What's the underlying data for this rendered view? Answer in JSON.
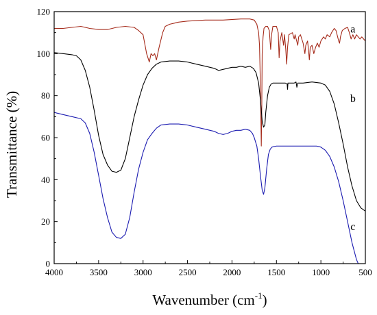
{
  "chart_data": {
    "type": "line",
    "xlabel": "Wavenumber (cm",
    "xlabel_superscript": "-1",
    "xlabel_close": ")",
    "ylabel": "Transmittance (%)",
    "xlim": [
      4000,
      500
    ],
    "ylim": [
      0,
      120
    ],
    "x_ticks": [
      4000,
      3500,
      3000,
      2500,
      2000,
      1500,
      1000,
      500
    ],
    "y_ticks": [
      0,
      20,
      40,
      60,
      80,
      100,
      120
    ],
    "grid": false,
    "legend": "none",
    "series": [
      {
        "label": "a",
        "color": "#a52a1a",
        "points": [
          [
            4000,
            112
          ],
          [
            3900,
            112
          ],
          [
            3800,
            112.5
          ],
          [
            3700,
            113
          ],
          [
            3600,
            112
          ],
          [
            3500,
            111.5
          ],
          [
            3400,
            111.5
          ],
          [
            3300,
            112.5
          ],
          [
            3200,
            113
          ],
          [
            3100,
            112.5
          ],
          [
            3050,
            111
          ],
          [
            3000,
            109
          ],
          [
            2960,
            100
          ],
          [
            2930,
            96
          ],
          [
            2910,
            100
          ],
          [
            2890,
            99
          ],
          [
            2870,
            100
          ],
          [
            2850,
            97
          ],
          [
            2820,
            103
          ],
          [
            2780,
            110
          ],
          [
            2750,
            113
          ],
          [
            2700,
            114
          ],
          [
            2600,
            115
          ],
          [
            2500,
            115.5
          ],
          [
            2300,
            116
          ],
          [
            2100,
            116
          ],
          [
            1900,
            116.5
          ],
          [
            1800,
            116.5
          ],
          [
            1750,
            116
          ],
          [
            1720,
            114
          ],
          [
            1700,
            110
          ],
          [
            1690,
            104
          ],
          [
            1680,
            85
          ],
          [
            1670,
            56
          ],
          [
            1665,
            75
          ],
          [
            1660,
            100
          ],
          [
            1650,
            108
          ],
          [
            1640,
            112
          ],
          [
            1620,
            113
          ],
          [
            1600,
            113
          ],
          [
            1580,
            111
          ],
          [
            1565,
            102
          ],
          [
            1555,
            109
          ],
          [
            1540,
            113
          ],
          [
            1500,
            113
          ],
          [
            1480,
            110
          ],
          [
            1470,
            98
          ],
          [
            1460,
            106
          ],
          [
            1440,
            110
          ],
          [
            1420,
            104
          ],
          [
            1410,
            109
          ],
          [
            1395,
            102
          ],
          [
            1385,
            95
          ],
          [
            1375,
            103
          ],
          [
            1360,
            109
          ],
          [
            1320,
            110
          ],
          [
            1300,
            107
          ],
          [
            1290,
            109
          ],
          [
            1260,
            104
          ],
          [
            1250,
            108
          ],
          [
            1230,
            109
          ],
          [
            1200,
            105
          ],
          [
            1180,
            100
          ],
          [
            1170,
            104
          ],
          [
            1150,
            106
          ],
          [
            1140,
            102
          ],
          [
            1130,
            97
          ],
          [
            1120,
            103
          ],
          [
            1100,
            104
          ],
          [
            1080,
            100
          ],
          [
            1060,
            103
          ],
          [
            1040,
            105
          ],
          [
            1020,
            103
          ],
          [
            1000,
            106
          ],
          [
            970,
            108
          ],
          [
            950,
            107
          ],
          [
            930,
            109
          ],
          [
            900,
            108
          ],
          [
            880,
            110
          ],
          [
            850,
            112
          ],
          [
            830,
            111
          ],
          [
            800,
            106
          ],
          [
            790,
            105
          ],
          [
            780,
            108
          ],
          [
            760,
            111
          ],
          [
            730,
            112
          ],
          [
            700,
            112.5
          ],
          [
            680,
            110
          ],
          [
            660,
            107
          ],
          [
            640,
            109
          ],
          [
            620,
            107
          ],
          [
            600,
            109
          ],
          [
            580,
            108
          ],
          [
            560,
            107
          ],
          [
            540,
            108
          ],
          [
            520,
            107
          ],
          [
            500,
            106
          ]
        ]
      },
      {
        "label": "b",
        "color": "#000000",
        "points": [
          [
            4000,
            100.5
          ],
          [
            3900,
            100
          ],
          [
            3800,
            99.5
          ],
          [
            3750,
            99
          ],
          [
            3700,
            97
          ],
          [
            3650,
            92
          ],
          [
            3600,
            84
          ],
          [
            3550,
            73
          ],
          [
            3500,
            61
          ],
          [
            3450,
            52
          ],
          [
            3400,
            47
          ],
          [
            3350,
            44
          ],
          [
            3300,
            43.5
          ],
          [
            3250,
            44.5
          ],
          [
            3200,
            50
          ],
          [
            3150,
            60
          ],
          [
            3100,
            70
          ],
          [
            3050,
            78
          ],
          [
            3000,
            85
          ],
          [
            2950,
            90
          ],
          [
            2900,
            93
          ],
          [
            2850,
            95
          ],
          [
            2800,
            96
          ],
          [
            2700,
            96.5
          ],
          [
            2600,
            96.5
          ],
          [
            2500,
            96
          ],
          [
            2400,
            95
          ],
          [
            2300,
            94
          ],
          [
            2200,
            93
          ],
          [
            2150,
            92
          ],
          [
            2100,
            92.5
          ],
          [
            2050,
            93
          ],
          [
            2000,
            93.5
          ],
          [
            1950,
            93.5
          ],
          [
            1900,
            94
          ],
          [
            1850,
            93.5
          ],
          [
            1800,
            94
          ],
          [
            1760,
            93
          ],
          [
            1730,
            91
          ],
          [
            1700,
            86
          ],
          [
            1680,
            78
          ],
          [
            1660,
            68
          ],
          [
            1645,
            65
          ],
          [
            1630,
            66
          ],
          [
            1620,
            72
          ],
          [
            1600,
            80
          ],
          [
            1580,
            84
          ],
          [
            1560,
            85.5
          ],
          [
            1540,
            86
          ],
          [
            1500,
            86
          ],
          [
            1450,
            86
          ],
          [
            1400,
            86
          ],
          [
            1380,
            85.5
          ],
          [
            1375,
            83
          ],
          [
            1370,
            86
          ],
          [
            1340,
            86
          ],
          [
            1300,
            86
          ],
          [
            1280,
            86.5
          ],
          [
            1270,
            84
          ],
          [
            1260,
            86
          ],
          [
            1200,
            86
          ],
          [
            1100,
            86.5
          ],
          [
            1000,
            86
          ],
          [
            950,
            85
          ],
          [
            900,
            82
          ],
          [
            850,
            76
          ],
          [
            800,
            67
          ],
          [
            750,
            57
          ],
          [
            700,
            46
          ],
          [
            650,
            37
          ],
          [
            600,
            30
          ],
          [
            550,
            26.5
          ],
          [
            500,
            25
          ]
        ]
      },
      {
        "label": "c",
        "color": "#1a1ab0",
        "points": [
          [
            4000,
            72
          ],
          [
            3900,
            71
          ],
          [
            3800,
            70
          ],
          [
            3700,
            69
          ],
          [
            3650,
            67
          ],
          [
            3600,
            62
          ],
          [
            3550,
            53
          ],
          [
            3500,
            42
          ],
          [
            3450,
            31
          ],
          [
            3400,
            22
          ],
          [
            3350,
            15
          ],
          [
            3300,
            12.5
          ],
          [
            3250,
            12
          ],
          [
            3200,
            14
          ],
          [
            3150,
            22
          ],
          [
            3100,
            34
          ],
          [
            3050,
            45
          ],
          [
            3000,
            53
          ],
          [
            2950,
            59
          ],
          [
            2900,
            62
          ],
          [
            2850,
            64.5
          ],
          [
            2800,
            66
          ],
          [
            2700,
            66.5
          ],
          [
            2600,
            66.5
          ],
          [
            2500,
            66
          ],
          [
            2400,
            65
          ],
          [
            2300,
            64
          ],
          [
            2200,
            63
          ],
          [
            2150,
            62
          ],
          [
            2100,
            61.5
          ],
          [
            2050,
            62
          ],
          [
            2000,
            63
          ],
          [
            1950,
            63.5
          ],
          [
            1900,
            63.5
          ],
          [
            1850,
            64
          ],
          [
            1800,
            63.5
          ],
          [
            1770,
            62
          ],
          [
            1750,
            60
          ],
          [
            1720,
            56
          ],
          [
            1700,
            50
          ],
          [
            1680,
            42
          ],
          [
            1660,
            35
          ],
          [
            1645,
            33
          ],
          [
            1630,
            36
          ],
          [
            1610,
            45
          ],
          [
            1590,
            52
          ],
          [
            1570,
            54.5
          ],
          [
            1550,
            55.5
          ],
          [
            1500,
            56
          ],
          [
            1400,
            56
          ],
          [
            1300,
            56
          ],
          [
            1200,
            56
          ],
          [
            1100,
            56
          ],
          [
            1050,
            56
          ],
          [
            1000,
            55.5
          ],
          [
            950,
            54
          ],
          [
            900,
            51
          ],
          [
            850,
            46
          ],
          [
            800,
            39
          ],
          [
            750,
            30
          ],
          [
            700,
            20
          ],
          [
            650,
            10
          ],
          [
            600,
            2
          ],
          [
            580,
            0
          ]
        ]
      }
    ]
  }
}
